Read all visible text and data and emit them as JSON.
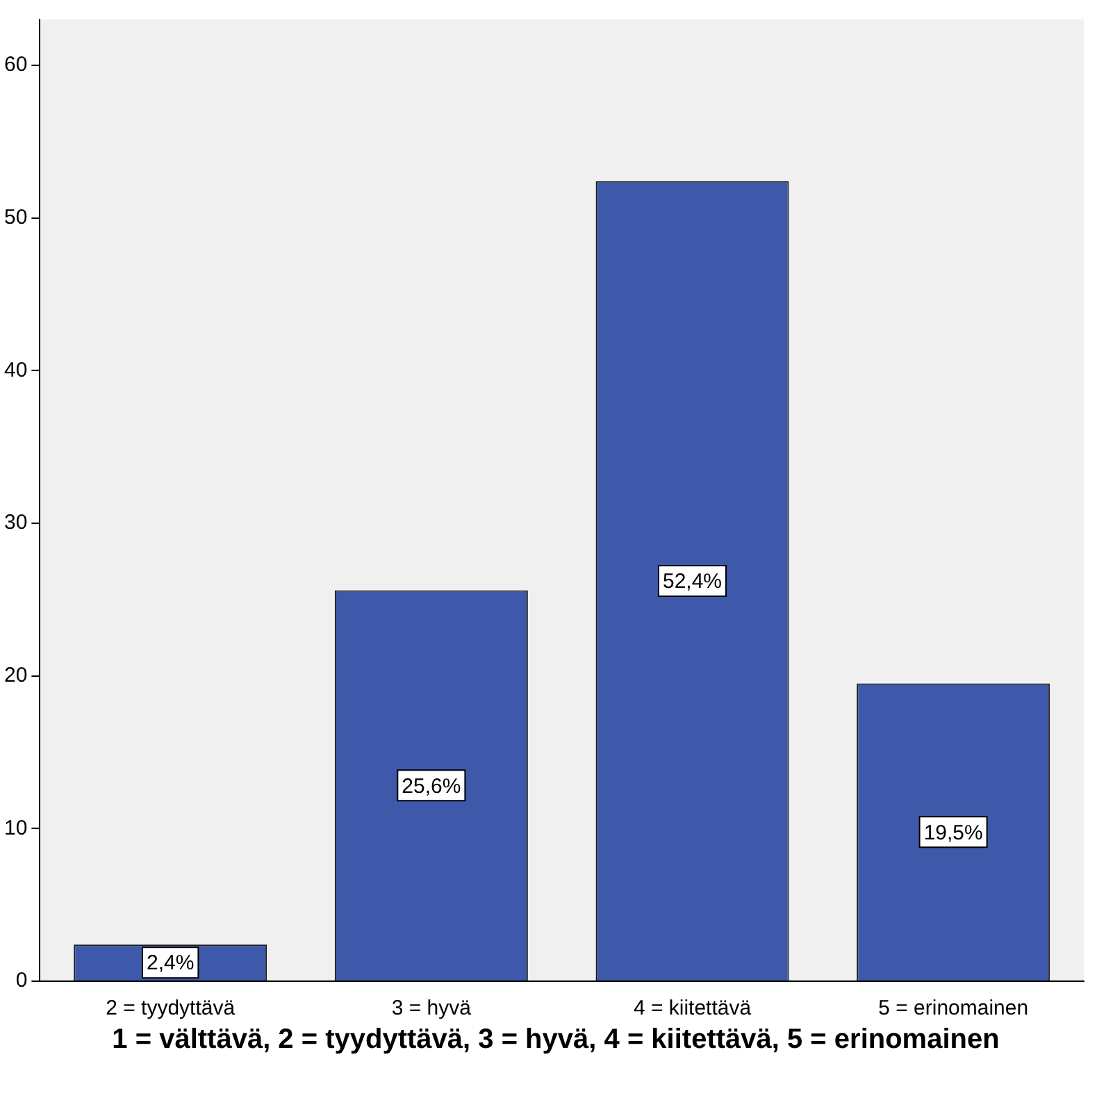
{
  "chart_data": {
    "type": "bar",
    "xlabel": "1 = välttävä, 2 = tyydyttävä, 3 = hyvä, 4 = kiitettävä, 5 = erinomainen",
    "categories": [
      "2 = tyydyttävä",
      "3 = hyvä",
      "4 = kiitettävä",
      "5 = erinomainen"
    ],
    "values": [
      2.4,
      25.6,
      52.4,
      19.5
    ],
    "value_labels": [
      "2,4%",
      "25,6%",
      "52,4%",
      "19,5%"
    ],
    "color": "#3e58aa",
    "ylim": [
      0,
      63
    ],
    "yticks": [
      0,
      10,
      20,
      30,
      40,
      50,
      60
    ],
    "grid": false,
    "legend": false
  }
}
